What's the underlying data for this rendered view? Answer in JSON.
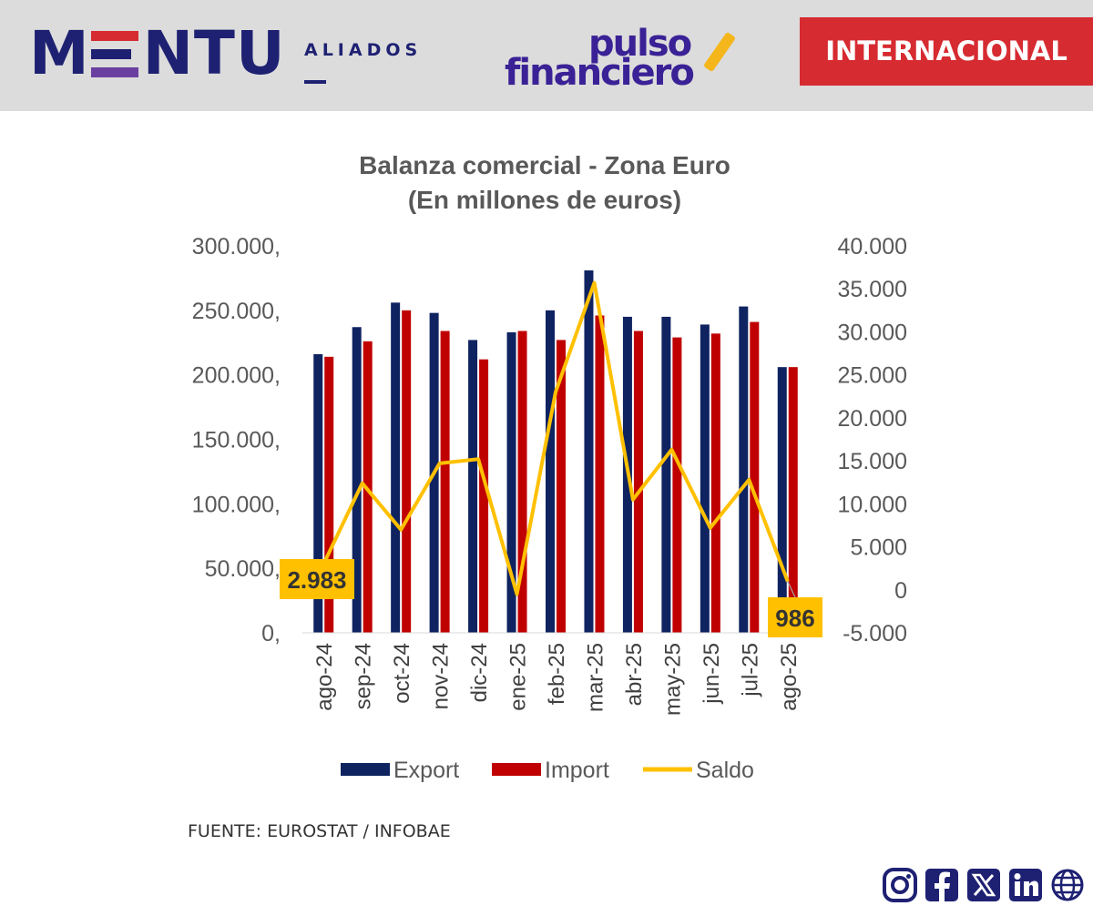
{
  "header": {
    "brand_left": "M",
    "brand_right": "NTU",
    "brand_sub": "ALIADOS",
    "logo_line1": "pulso",
    "logo_line2": "financiero",
    "badge": "INTERNACIONAL"
  },
  "colors": {
    "export": "#0f2361",
    "import": "#c00000",
    "saldo": "#ffc000",
    "header_bg": "#dcdcdc",
    "badge_bg": "#d62b31",
    "brand_navy": "#1e2172",
    "brand_purple": "#3a2196"
  },
  "chart_data": {
    "type": "bar",
    "title": "Balanza comercial - Zona Euro",
    "subtitle": "(En millones de euros)",
    "categories": [
      "ago-24",
      "sep-24",
      "oct-24",
      "nov-24",
      "dic-24",
      "ene-25",
      "feb-25",
      "mar-25",
      "abr-25",
      "may-25",
      "jun-25",
      "jul-25",
      "ago-25"
    ],
    "series": [
      {
        "name": "Export",
        "kind": "bar",
        "axis": "left",
        "values": [
          216000,
          237000,
          256000,
          248000,
          227000,
          233000,
          250000,
          281000,
          245000,
          245000,
          239000,
          253000,
          206000
        ]
      },
      {
        "name": "Import",
        "kind": "bar",
        "axis": "left",
        "values": [
          214000,
          226000,
          250000,
          234000,
          212000,
          234000,
          227000,
          246000,
          234000,
          229000,
          232000,
          241000,
          206000
        ]
      },
      {
        "name": "Saldo",
        "kind": "line",
        "axis": "right",
        "values": [
          2983,
          12400,
          7000,
          14700,
          15200,
          -500,
          23000,
          35700,
          10500,
          16300,
          7200,
          12800,
          986
        ]
      }
    ],
    "y_left": {
      "min": 0,
      "max": 300000,
      "ticks": [
        "0,",
        "50.000,",
        "100.000,",
        "150.000,",
        "200.000,",
        "250.000,",
        "300.000,"
      ]
    },
    "y_right": {
      "min": -5000,
      "max": 40000,
      "ticks": [
        "-5.000",
        "0",
        "5.000",
        "10.000",
        "15.000",
        "20.000",
        "25.000",
        "30.000",
        "35.000",
        "40.000"
      ]
    },
    "legend": [
      "Export",
      "Import",
      "Saldo"
    ],
    "annotations": [
      {
        "category": "ago-24",
        "label": "2.983"
      },
      {
        "category": "ago-25",
        "label": "986"
      }
    ]
  },
  "footer": {
    "source": "FUENTE: EUROSTAT / INFOBAE",
    "social": [
      "instagram-icon",
      "facebook-icon",
      "x-icon",
      "linkedin-icon",
      "globe-icon"
    ]
  }
}
